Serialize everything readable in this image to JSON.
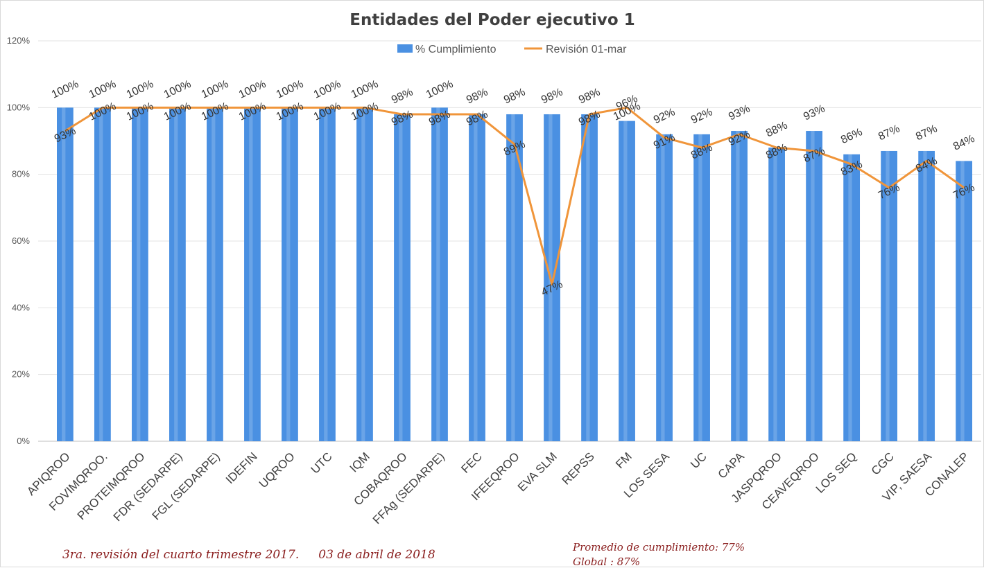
{
  "chart_data": {
    "type": "bar",
    "title": "Entidades del Poder ejecutivo 1",
    "categories": [
      "APIQROO",
      "FOVIMQROO.",
      "PROTEIMQROO",
      "FDR (SEDARPE)",
      "FGL (SEDARPE)",
      "IDEFIN",
      "UQROO",
      "UTC",
      "IQM",
      "COBAQROO",
      "FFAg (SEDARPE)",
      "FEC",
      "IFEEQROO",
      "EVA SLM",
      "REPSS",
      "FM",
      "LOS SESA",
      "UC",
      "CAPA",
      "JASPQROO",
      "CEAVEQROO",
      "LOS SEQ",
      "CGC",
      "VIP, SAESA",
      "CONALEP"
    ],
    "series": [
      {
        "name": "% Cumplimiento",
        "kind": "bar",
        "color": "#4a90e2",
        "values": [
          100,
          100,
          100,
          100,
          100,
          100,
          100,
          100,
          100,
          98,
          100,
          98,
          98,
          98,
          98,
          96,
          92,
          92,
          93,
          88,
          93,
          86,
          87,
          87,
          84
        ],
        "labels": [
          "100%",
          "100%",
          "100%",
          "100%",
          "100%",
          "100%",
          "100%",
          "100%",
          "100%",
          "98%",
          "100%",
          "98%",
          "98%",
          "98%",
          "98%",
          "96%",
          "92%",
          "92%",
          "93%",
          "88%",
          "93%",
          "86%",
          "87%",
          "87%",
          "84%"
        ]
      },
      {
        "name": "Revisión  01-mar",
        "kind": "line",
        "color": "#f0953a",
        "values": [
          93,
          100,
          100,
          100,
          100,
          100,
          100,
          100,
          100,
          98,
          98,
          98,
          89,
          47,
          98,
          100,
          91,
          88,
          92,
          88,
          87,
          83,
          76,
          84,
          76
        ],
        "labels": [
          "93%",
          "100%",
          "100%",
          "100%",
          "100%",
          "100%",
          "100%",
          "100%",
          "100%",
          "98%",
          "98%",
          "98%",
          "89%",
          "47%",
          "98%",
          "100%",
          "91%",
          "88%",
          "92%",
          "88%",
          "87%",
          "83%",
          "76%",
          "84%",
          "76%"
        ]
      }
    ],
    "y_ticks": [
      "0%",
      "20%",
      "40%",
      "60%",
      "80%",
      "100%",
      "120%"
    ],
    "ylim": [
      0,
      120
    ],
    "grid": true,
    "legend": "top-center"
  },
  "notes": {
    "revision": "3ra. revisión del cuarto trimestre 2017.",
    "date": "03 de abril de 2018",
    "promedio": "Promedio de cumplimiento: 77%",
    "global": "Global : 87%"
  }
}
